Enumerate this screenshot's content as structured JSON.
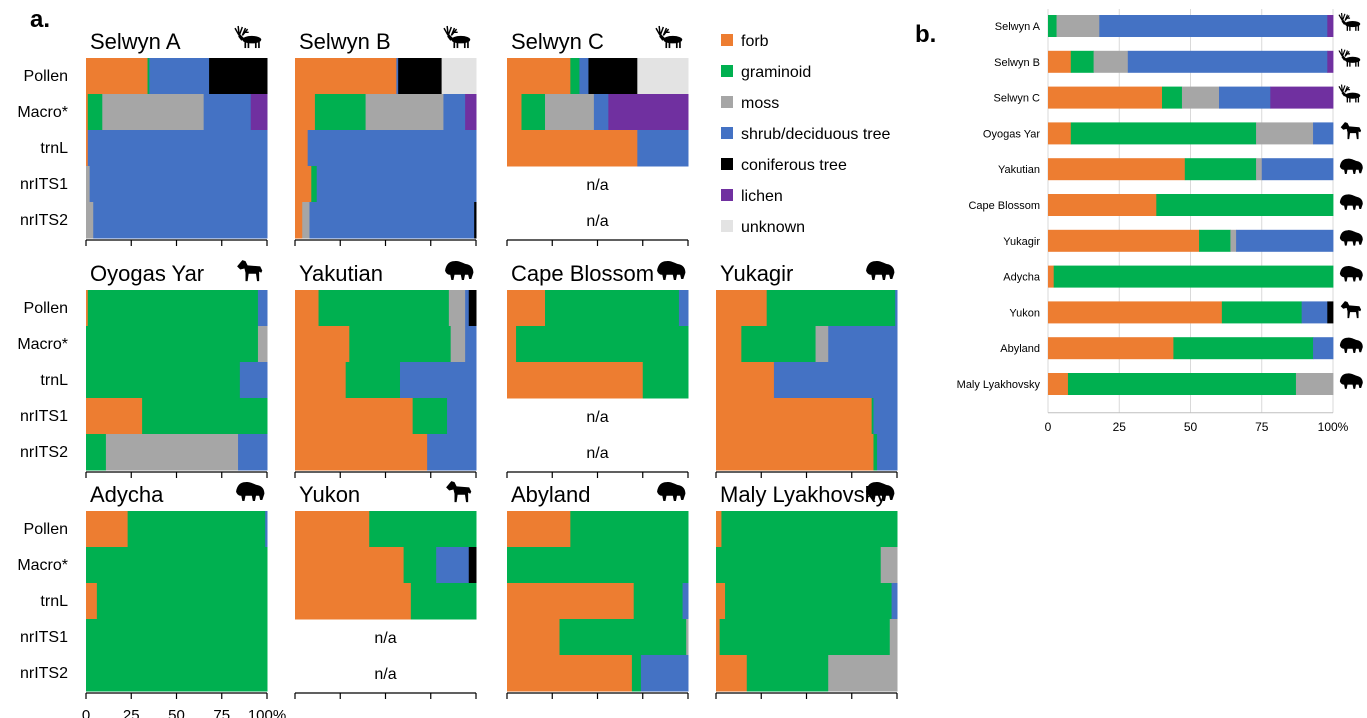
{
  "figure": {
    "label_a": "a.",
    "label_b": "b."
  },
  "colors": {
    "forb": "#ED7D31",
    "graminoid": "#00B050",
    "moss": "#A6A6A6",
    "shrub": "#4472C4",
    "conifer": "#000000",
    "lichen": "#7030A0",
    "unknown": "#E3E3E3"
  },
  "legend": [
    {
      "key": "forb",
      "label": "forb"
    },
    {
      "key": "graminoid",
      "label": "graminoid"
    },
    {
      "key": "moss",
      "label": "moss"
    },
    {
      "key": "shrub",
      "label": "shrub/deciduous tree"
    },
    {
      "key": "conifer",
      "label": "coniferous tree"
    },
    {
      "key": "lichen",
      "label": "lichen"
    },
    {
      "key": "unknown",
      "label": "unknown"
    }
  ],
  "row_labels": [
    "Pollen",
    "Macro*",
    "trnL",
    "nrITS1",
    "nrITS2"
  ],
  "na_text": "n/a",
  "chart_data": [
    {
      "type": "bar",
      "orientation": "horizontal",
      "stacked": true,
      "panel": "a",
      "xlim": [
        0,
        100
      ],
      "x_ticks": [
        "0",
        "25",
        "50",
        "75",
        "100%"
      ],
      "categories": [
        "Pollen",
        "Macro*",
        "trnL",
        "nrITS1",
        "nrITS2"
      ],
      "sites": [
        {
          "name": "Selwyn A",
          "icon": "caribou-icon",
          "rows": [
            [
              {
                "k": "forb",
                "v": 34
              },
              {
                "k": "graminoid",
                "v": 1
              },
              {
                "k": "shrub",
                "v": 33
              },
              {
                "k": "conifer",
                "v": 32
              }
            ],
            [
              {
                "k": "forb",
                "v": 1
              },
              {
                "k": "graminoid",
                "v": 8
              },
              {
                "k": "moss",
                "v": 56
              },
              {
                "k": "shrub",
                "v": 26
              },
              {
                "k": "lichen",
                "v": 9
              }
            ],
            [
              {
                "k": "forb",
                "v": 1
              },
              {
                "k": "shrub",
                "v": 99
              }
            ],
            [
              {
                "k": "moss",
                "v": 2
              },
              {
                "k": "shrub",
                "v": 98
              }
            ],
            [
              {
                "k": "moss",
                "v": 4
              },
              {
                "k": "shrub",
                "v": 96
              }
            ]
          ]
        },
        {
          "name": "Selwyn B",
          "icon": "caribou-icon",
          "rows": [
            [
              {
                "k": "forb",
                "v": 56
              },
              {
                "k": "shrub",
                "v": 1
              },
              {
                "k": "conifer",
                "v": 24
              },
              {
                "k": "unknown",
                "v": 19
              }
            ],
            [
              {
                "k": "forb",
                "v": 11
              },
              {
                "k": "graminoid",
                "v": 28
              },
              {
                "k": "moss",
                "v": 43
              },
              {
                "k": "shrub",
                "v": 12
              },
              {
                "k": "lichen",
                "v": 6
              }
            ],
            [
              {
                "k": "forb",
                "v": 7
              },
              {
                "k": "shrub",
                "v": 93
              }
            ],
            [
              {
                "k": "forb",
                "v": 9
              },
              {
                "k": "graminoid",
                "v": 3
              },
              {
                "k": "shrub",
                "v": 88
              }
            ],
            [
              {
                "k": "forb",
                "v": 4
              },
              {
                "k": "moss",
                "v": 4
              },
              {
                "k": "shrub",
                "v": 91
              },
              {
                "k": "conifer",
                "v": 1
              }
            ]
          ]
        },
        {
          "name": "Selwyn C",
          "icon": "caribou-icon",
          "rows": [
            [
              {
                "k": "forb",
                "v": 35
              },
              {
                "k": "graminoid",
                "v": 5
              },
              {
                "k": "shrub",
                "v": 5
              },
              {
                "k": "conifer",
                "v": 27
              },
              {
                "k": "unknown",
                "v": 28
              }
            ],
            [
              {
                "k": "forb",
                "v": 8
              },
              {
                "k": "graminoid",
                "v": 13
              },
              {
                "k": "moss",
                "v": 27
              },
              {
                "k": "shrub",
                "v": 8
              },
              {
                "k": "lichen",
                "v": 44
              }
            ],
            [
              {
                "k": "forb",
                "v": 72
              },
              {
                "k": "shrub",
                "v": 28
              }
            ],
            null,
            null
          ]
        },
        {
          "name": "Oyogas Yar",
          "icon": "horse-icon",
          "rows": [
            [
              {
                "k": "forb",
                "v": 1
              },
              {
                "k": "graminoid",
                "v": 94
              },
              {
                "k": "shrub",
                "v": 5
              }
            ],
            [
              {
                "k": "graminoid",
                "v": 95
              },
              {
                "k": "moss",
                "v": 5
              }
            ],
            [
              {
                "k": "graminoid",
                "v": 85
              },
              {
                "k": "shrub",
                "v": 15
              }
            ],
            [
              {
                "k": "forb",
                "v": 31
              },
              {
                "k": "graminoid",
                "v": 69
              }
            ],
            [
              {
                "k": "graminoid",
                "v": 11
              },
              {
                "k": "moss",
                "v": 73
              },
              {
                "k": "shrub",
                "v": 16
              }
            ]
          ]
        },
        {
          "name": "Yakutian",
          "icon": "bison-icon",
          "rows": [
            [
              {
                "k": "forb",
                "v": 13
              },
              {
                "k": "graminoid",
                "v": 72
              },
              {
                "k": "moss",
                "v": 9
              },
              {
                "k": "shrub",
                "v": 2
              },
              {
                "k": "conifer",
                "v": 4
              }
            ],
            [
              {
                "k": "forb",
                "v": 30
              },
              {
                "k": "graminoid",
                "v": 56
              },
              {
                "k": "moss",
                "v": 8
              },
              {
                "k": "shrub",
                "v": 6
              }
            ],
            [
              {
                "k": "forb",
                "v": 28
              },
              {
                "k": "graminoid",
                "v": 30
              },
              {
                "k": "shrub",
                "v": 42
              }
            ],
            [
              {
                "k": "forb",
                "v": 65
              },
              {
                "k": "graminoid",
                "v": 19
              },
              {
                "k": "shrub",
                "v": 16
              }
            ],
            [
              {
                "k": "forb",
                "v": 73
              },
              {
                "k": "shrub",
                "v": 27
              }
            ]
          ]
        },
        {
          "name": "Cape Blossom",
          "icon": "bison-icon",
          "rows": [
            [
              {
                "k": "forb",
                "v": 21
              },
              {
                "k": "graminoid",
                "v": 74
              },
              {
                "k": "shrub",
                "v": 5
              }
            ],
            [
              {
                "k": "forb",
                "v": 5
              },
              {
                "k": "graminoid",
                "v": 95
              }
            ],
            [
              {
                "k": "forb",
                "v": 75
              },
              {
                "k": "graminoid",
                "v": 25
              }
            ],
            null,
            null
          ]
        },
        {
          "name": "Yukagir",
          "icon": "bison-icon",
          "rows": [
            [
              {
                "k": "forb",
                "v": 28
              },
              {
                "k": "graminoid",
                "v": 71
              },
              {
                "k": "shrub",
                "v": 1
              }
            ],
            [
              {
                "k": "forb",
                "v": 14
              },
              {
                "k": "graminoid",
                "v": 41
              },
              {
                "k": "moss",
                "v": 7
              },
              {
                "k": "shrub",
                "v": 38
              }
            ],
            [
              {
                "k": "forb",
                "v": 32
              },
              {
                "k": "shrub",
                "v": 68
              }
            ],
            [
              {
                "k": "forb",
                "v": 86
              },
              {
                "k": "graminoid",
                "v": 1
              },
              {
                "k": "shrub",
                "v": 13
              }
            ],
            [
              {
                "k": "forb",
                "v": 87
              },
              {
                "k": "graminoid",
                "v": 2
              },
              {
                "k": "shrub",
                "v": 11
              }
            ]
          ]
        },
        {
          "name": "Adycha",
          "icon": "bison-icon",
          "rows": [
            [
              {
                "k": "forb",
                "v": 23
              },
              {
                "k": "graminoid",
                "v": 76
              },
              {
                "k": "shrub",
                "v": 1
              }
            ],
            [
              {
                "k": "graminoid",
                "v": 100
              }
            ],
            [
              {
                "k": "forb",
                "v": 6
              },
              {
                "k": "graminoid",
                "v": 94
              }
            ],
            [
              {
                "k": "graminoid",
                "v": 100
              }
            ],
            [
              {
                "k": "graminoid",
                "v": 100
              }
            ]
          ]
        },
        {
          "name": "Yukon",
          "icon": "horse-icon",
          "rows": [
            [
              {
                "k": "forb",
                "v": 41
              },
              {
                "k": "graminoid",
                "v": 59
              }
            ],
            [
              {
                "k": "forb",
                "v": 60
              },
              {
                "k": "graminoid",
                "v": 18
              },
              {
                "k": "shrub",
                "v": 18
              },
              {
                "k": "conifer",
                "v": 4
              }
            ],
            [
              {
                "k": "forb",
                "v": 64
              },
              {
                "k": "graminoid",
                "v": 36
              }
            ],
            null,
            null
          ]
        },
        {
          "name": "Abyland",
          "icon": "bison-icon",
          "rows": [
            [
              {
                "k": "forb",
                "v": 35
              },
              {
                "k": "graminoid",
                "v": 65
              }
            ],
            [
              {
                "k": "graminoid",
                "v": 100
              }
            ],
            [
              {
                "k": "forb",
                "v": 70
              },
              {
                "k": "graminoid",
                "v": 27
              },
              {
                "k": "shrub",
                "v": 3
              }
            ],
            [
              {
                "k": "forb",
                "v": 29
              },
              {
                "k": "graminoid",
                "v": 70
              },
              {
                "k": "moss",
                "v": 1
              }
            ],
            [
              {
                "k": "forb",
                "v": 69
              },
              {
                "k": "graminoid",
                "v": 5
              },
              {
                "k": "shrub",
                "v": 26
              }
            ]
          ]
        },
        {
          "name": "Maly Lyakhovsky",
          "icon": "bison-icon",
          "rows": [
            [
              {
                "k": "forb",
                "v": 3
              },
              {
                "k": "graminoid",
                "v": 97
              }
            ],
            [
              {
                "k": "graminoid",
                "v": 91
              },
              {
                "k": "moss",
                "v": 9
              }
            ],
            [
              {
                "k": "forb",
                "v": 5
              },
              {
                "k": "graminoid",
                "v": 92
              },
              {
                "k": "shrub",
                "v": 3
              }
            ],
            [
              {
                "k": "forb",
                "v": 2
              },
              {
                "k": "graminoid",
                "v": 94
              },
              {
                "k": "moss",
                "v": 4
              }
            ],
            [
              {
                "k": "forb",
                "v": 17
              },
              {
                "k": "graminoid",
                "v": 45
              },
              {
                "k": "moss",
                "v": 38
              }
            ]
          ]
        }
      ]
    },
    {
      "type": "bar",
      "orientation": "horizontal",
      "stacked": true,
      "panel": "b",
      "xlim": [
        0,
        100
      ],
      "x_ticks": [
        "0",
        "25",
        "50",
        "75",
        "100%"
      ],
      "grid": true,
      "categories": [
        "Selwyn A",
        "Selwyn B",
        "Selwyn C",
        "Oyogas Yar",
        "Yakutian",
        "Cape Blossom",
        "Yukagir",
        "Adycha",
        "Yukon",
        "Abyland",
        "Maly Lyakhovsky"
      ],
      "icons": [
        "caribou-icon",
        "caribou-icon",
        "caribou-icon",
        "horse-icon",
        "bison-icon",
        "bison-icon",
        "bison-icon",
        "bison-icon",
        "horse-icon",
        "bison-icon",
        "bison-icon"
      ],
      "rows": [
        [
          {
            "k": "graminoid",
            "v": 3
          },
          {
            "k": "moss",
            "v": 15
          },
          {
            "k": "shrub",
            "v": 80
          },
          {
            "k": "lichen",
            "v": 2
          }
        ],
        [
          {
            "k": "forb",
            "v": 8
          },
          {
            "k": "graminoid",
            "v": 8
          },
          {
            "k": "moss",
            "v": 12
          },
          {
            "k": "shrub",
            "v": 70
          },
          {
            "k": "lichen",
            "v": 2
          }
        ],
        [
          {
            "k": "forb",
            "v": 40
          },
          {
            "k": "graminoid",
            "v": 7
          },
          {
            "k": "moss",
            "v": 13
          },
          {
            "k": "shrub",
            "v": 18
          },
          {
            "k": "lichen",
            "v": 22
          }
        ],
        [
          {
            "k": "forb",
            "v": 8
          },
          {
            "k": "graminoid",
            "v": 65
          },
          {
            "k": "moss",
            "v": 20
          },
          {
            "k": "shrub",
            "v": 7
          }
        ],
        [
          {
            "k": "forb",
            "v": 48
          },
          {
            "k": "graminoid",
            "v": 25
          },
          {
            "k": "moss",
            "v": 2
          },
          {
            "k": "shrub",
            "v": 25
          }
        ],
        [
          {
            "k": "forb",
            "v": 38
          },
          {
            "k": "graminoid",
            "v": 62
          }
        ],
        [
          {
            "k": "forb",
            "v": 53
          },
          {
            "k": "graminoid",
            "v": 11
          },
          {
            "k": "moss",
            "v": 2
          },
          {
            "k": "shrub",
            "v": 34
          }
        ],
        [
          {
            "k": "forb",
            "v": 2
          },
          {
            "k": "graminoid",
            "v": 98
          }
        ],
        [
          {
            "k": "forb",
            "v": 61
          },
          {
            "k": "graminoid",
            "v": 28
          },
          {
            "k": "shrub",
            "v": 9
          },
          {
            "k": "conifer",
            "v": 2
          }
        ],
        [
          {
            "k": "forb",
            "v": 44
          },
          {
            "k": "graminoid",
            "v": 49
          },
          {
            "k": "shrub",
            "v": 7
          }
        ],
        [
          {
            "k": "forb",
            "v": 7
          },
          {
            "k": "graminoid",
            "v": 80
          },
          {
            "k": "moss",
            "v": 13
          }
        ]
      ]
    }
  ]
}
